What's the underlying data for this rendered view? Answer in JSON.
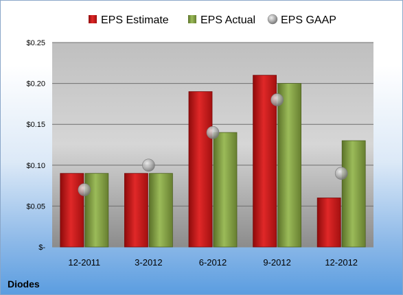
{
  "company": "Diodes",
  "chart_data": {
    "type": "bar",
    "title": "",
    "xlabel": "",
    "ylabel": "",
    "categories": [
      "12-2011",
      "3-2012",
      "6-2012",
      "9-2012",
      "12-2012"
    ],
    "series": [
      {
        "name": "EPS Estimate",
        "kind": "bar",
        "values": [
          0.09,
          0.09,
          0.19,
          0.21,
          0.06
        ],
        "color": "#c81414"
      },
      {
        "name": "EPS Actual",
        "kind": "bar",
        "values": [
          0.09,
          0.09,
          0.14,
          0.2,
          0.13
        ],
        "color": "#7e9a3e"
      },
      {
        "name": "EPS GAAP",
        "kind": "marker",
        "values": [
          0.07,
          0.1,
          0.14,
          0.18,
          0.09
        ],
        "color": "#a6a6a6"
      }
    ],
    "ylim": [
      0,
      0.25
    ],
    "yticks": [
      0,
      0.05,
      0.1,
      0.15,
      0.2,
      0.25
    ],
    "ytick_labels": [
      "$-",
      "$0.05",
      "$0.10",
      "$0.15",
      "$0.20",
      "$0.25"
    ],
    "grid": true,
    "legend": "top"
  }
}
